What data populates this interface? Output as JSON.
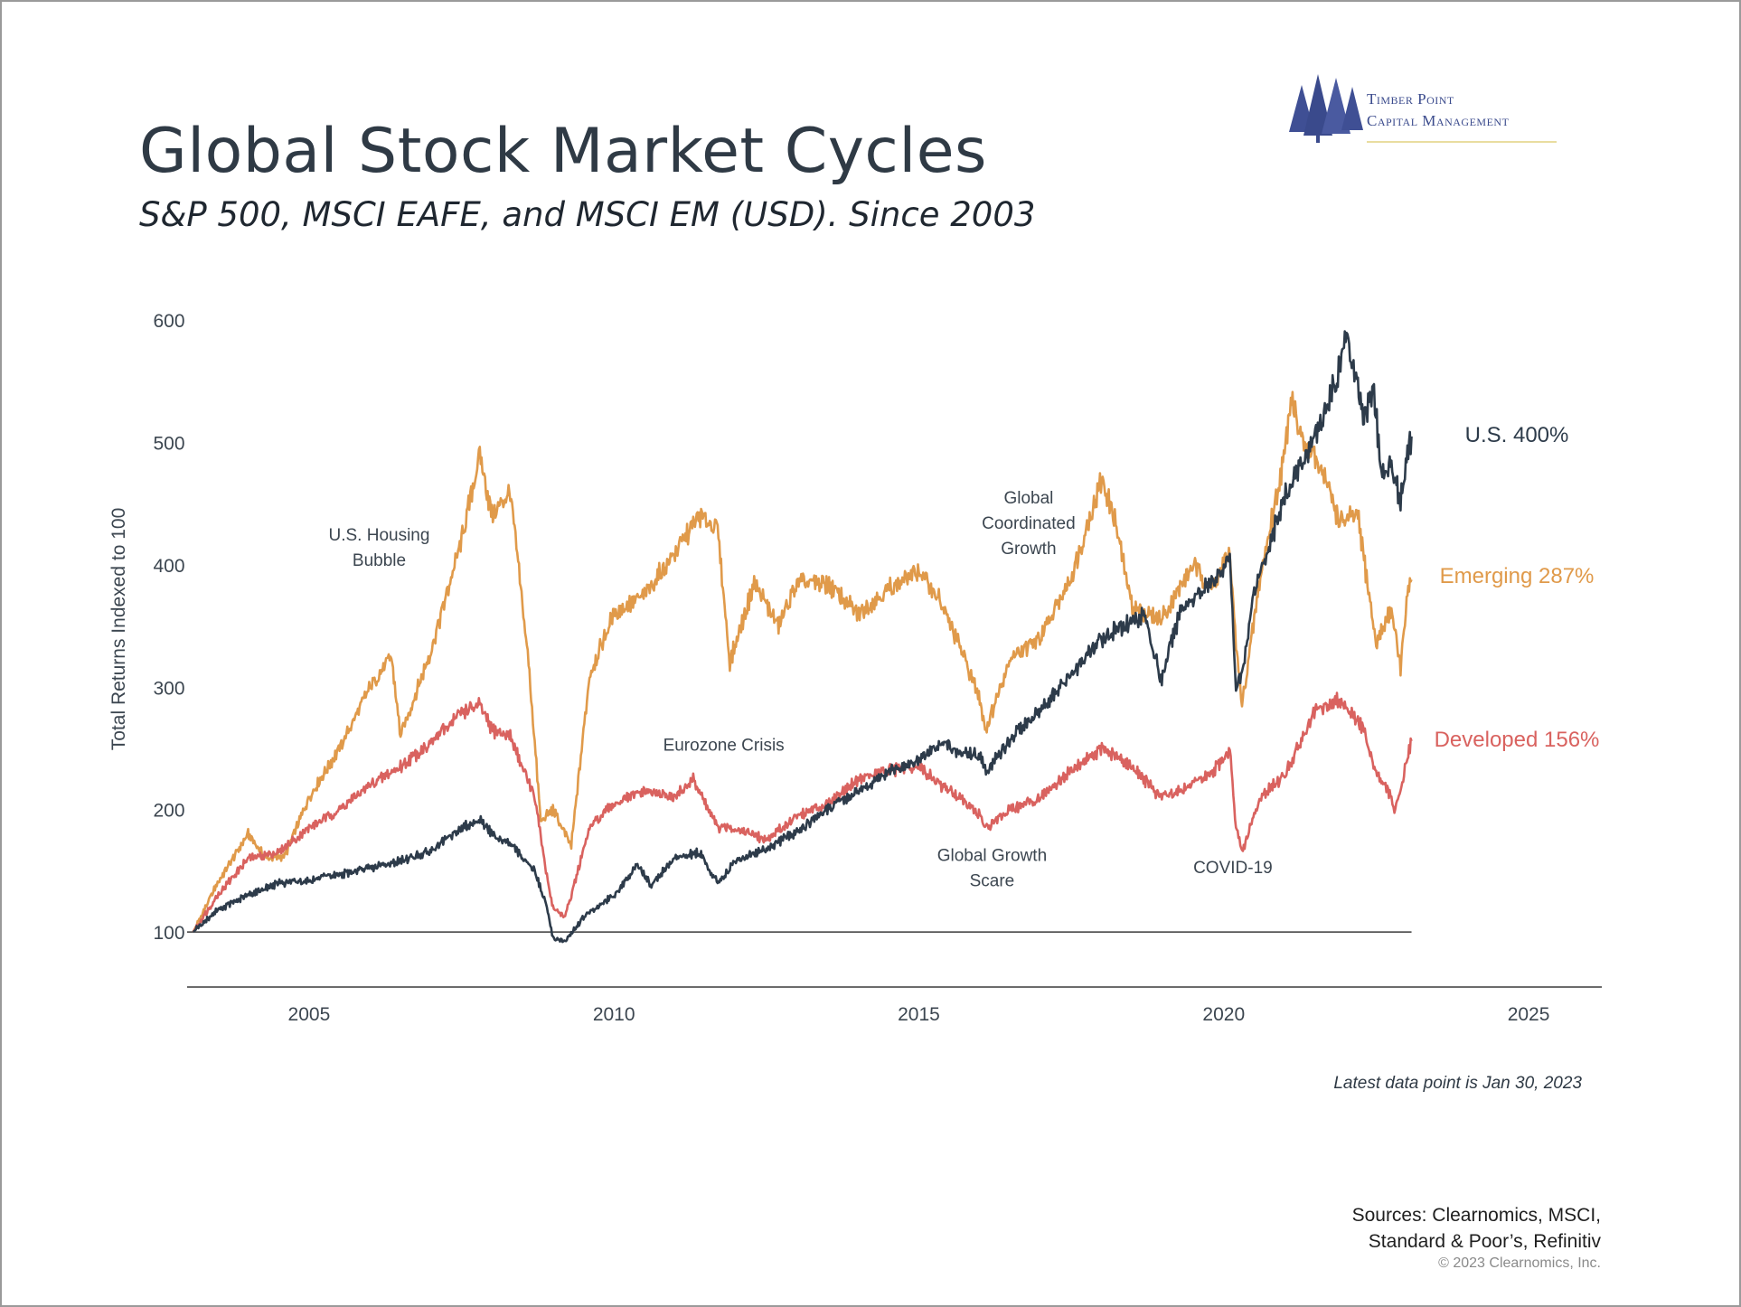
{
  "title": "Global Stock Market Cycles",
  "subtitle": "S&P 500, MSCI EAFE, and MSCI EM (USD). Since 2003",
  "logo": {
    "line1": "Timber Point",
    "line2": "Capital Management",
    "icon": "pine-trees-icon"
  },
  "footnote": "Latest data point is Jan 30, 2023",
  "sources": {
    "line1": "Sources: Clearnomics, MSCI,",
    "line2": "Standard & Poor’s, Refinitiv"
  },
  "copyright": "© 2023 Clearnomics, Inc.",
  "colors": {
    "us": "#2d3b4a",
    "emerging": "#e09a4a",
    "developed": "#d9625f",
    "axis": "#3a3a3a",
    "annotation": "#3c4650"
  },
  "chart_data": {
    "type": "line",
    "ylabel": "Total Returns Indexed to 100",
    "xlabel": "",
    "xlim": [
      2003.0,
      2026.2
    ],
    "ylim": [
      55,
      640
    ],
    "yticks": [
      100,
      200,
      300,
      400,
      500,
      600
    ],
    "xticks": [
      2005,
      2010,
      2015,
      2020,
      2025
    ],
    "baseline": 100,
    "grid": false,
    "series": [
      {
        "key": "us",
        "name": "U.S. 400%",
        "color": "#2d3b4a",
        "x": [
          2003.1,
          2003.5,
          2004.0,
          2004.5,
          2005.0,
          2005.5,
          2006.0,
          2006.5,
          2007.0,
          2007.5,
          2007.8,
          2008.0,
          2008.3,
          2008.7,
          2008.9,
          2009.0,
          2009.2,
          2009.5,
          2010.0,
          2010.4,
          2010.6,
          2011.0,
          2011.4,
          2011.7,
          2012.0,
          2012.5,
          2013.0,
          2013.5,
          2014.0,
          2014.5,
          2015.0,
          2015.4,
          2015.7,
          2016.0,
          2016.1,
          2016.5,
          2017.0,
          2017.5,
          2018.0,
          2018.7,
          2018.97,
          2019.3,
          2019.8,
          2020.1,
          2020.2,
          2020.3,
          2020.5,
          2020.8,
          2021.0,
          2021.5,
          2021.9,
          2022.0,
          2022.3,
          2022.45,
          2022.6,
          2022.75,
          2022.9,
          2023.0,
          2023.08
        ],
        "y": [
          100,
          118,
          130,
          140,
          142,
          147,
          152,
          158,
          166,
          185,
          192,
          180,
          172,
          150,
          120,
          95,
          92,
          112,
          130,
          155,
          138,
          160,
          165,
          140,
          158,
          168,
          182,
          200,
          215,
          230,
          240,
          255,
          245,
          245,
          230,
          258,
          282,
          310,
          340,
          360,
          305,
          365,
          385,
          405,
          300,
          310,
          380,
          425,
          455,
          505,
          560,
          590,
          520,
          545,
          470,
          485,
          450,
          490,
          505
        ]
      },
      {
        "key": "emerging",
        "name": "Emerging 287%",
        "color": "#e09a4a",
        "x": [
          2003.1,
          2003.5,
          2004.0,
          2004.3,
          2004.6,
          2005.0,
          2005.5,
          2006.0,
          2006.35,
          2006.5,
          2007.0,
          2007.5,
          2007.8,
          2008.0,
          2008.3,
          2008.6,
          2008.8,
          2009.0,
          2009.3,
          2009.6,
          2010.0,
          2010.5,
          2011.0,
          2011.4,
          2011.7,
          2011.9,
          2012.3,
          2012.7,
          2013.0,
          2013.5,
          2014.0,
          2014.5,
          2015.0,
          2015.3,
          2015.7,
          2016.0,
          2016.1,
          2016.5,
          2017.0,
          2017.5,
          2018.0,
          2018.2,
          2018.5,
          2018.97,
          2019.5,
          2019.8,
          2020.1,
          2020.2,
          2020.3,
          2020.6,
          2021.0,
          2021.1,
          2021.3,
          2021.6,
          2021.9,
          2022.2,
          2022.5,
          2022.75,
          2022.9,
          2023.0,
          2023.08
        ],
        "y": [
          100,
          140,
          180,
          160,
          162,
          210,
          250,
          300,
          325,
          260,
          330,
          420,
          490,
          440,
          460,
          320,
          190,
          200,
          170,
          310,
          360,
          375,
          410,
          440,
          430,
          320,
          385,
          350,
          385,
          385,
          360,
          380,
          395,
          375,
          330,
          290,
          265,
          325,
          340,
          390,
          470,
          440,
          365,
          355,
          400,
          380,
          410,
          335,
          285,
          390,
          490,
          540,
          500,
          480,
          435,
          440,
          335,
          365,
          315,
          370,
          388
        ]
      },
      {
        "key": "developed",
        "name": "Developed 156%",
        "color": "#d9625f",
        "x": [
          2003.1,
          2003.5,
          2004.0,
          2004.5,
          2005.0,
          2005.5,
          2006.0,
          2006.5,
          2007.0,
          2007.5,
          2007.8,
          2008.0,
          2008.3,
          2008.7,
          2008.9,
          2009.0,
          2009.2,
          2009.6,
          2010.0,
          2010.5,
          2011.0,
          2011.3,
          2011.7,
          2012.0,
          2012.5,
          2013.0,
          2013.5,
          2014.0,
          2014.5,
          2015.0,
          2015.4,
          2015.7,
          2016.0,
          2016.1,
          2016.5,
          2017.0,
          2017.5,
          2018.0,
          2018.5,
          2018.97,
          2019.5,
          2019.8,
          2020.1,
          2020.2,
          2020.3,
          2020.6,
          2021.0,
          2021.5,
          2021.9,
          2022.0,
          2022.3,
          2022.5,
          2022.75,
          2022.8,
          2022.9,
          2023.0,
          2023.08
        ],
        "y": [
          100,
          130,
          160,
          165,
          185,
          200,
          220,
          235,
          255,
          280,
          285,
          265,
          260,
          210,
          145,
          120,
          112,
          185,
          205,
          215,
          210,
          225,
          185,
          185,
          175,
          195,
          205,
          225,
          232,
          235,
          218,
          210,
          195,
          185,
          200,
          210,
          232,
          250,
          235,
          210,
          220,
          230,
          248,
          185,
          165,
          210,
          228,
          280,
          290,
          285,
          265,
          230,
          210,
          200,
          215,
          240,
          256
        ]
      }
    ],
    "annotations": [
      {
        "x": 2006.15,
        "y": 420,
        "lines": [
          "U.S. Housing",
          "Bubble"
        ]
      },
      {
        "x": 2011.8,
        "y": 248,
        "lines": [
          "Eurozone Crisis"
        ]
      },
      {
        "x": 2016.8,
        "y": 450,
        "lines": [
          "Global",
          "Coordinated",
          "Growth"
        ]
      },
      {
        "x": 2016.2,
        "y": 158,
        "lines": [
          "Global Growth",
          "Scare"
        ]
      },
      {
        "x": 2020.15,
        "y": 148,
        "lines": [
          "COVID-19"
        ]
      }
    ]
  }
}
